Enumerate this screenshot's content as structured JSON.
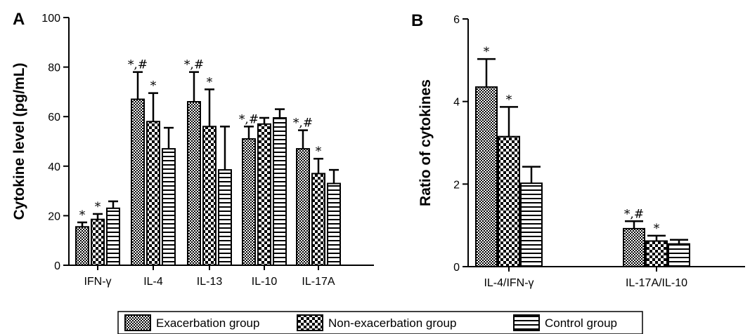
{
  "chart_data": [
    {
      "type": "bar",
      "panel_label": "A",
      "ylabel": "Cytokine level (pg/mL)",
      "ylim": [
        0,
        100
      ],
      "yticks": [
        "0",
        "20",
        "40",
        "60",
        "80",
        "100"
      ],
      "categories": [
        "IFN-γ",
        "IL-4",
        "IL-13",
        "IL-10",
        "IL-17A"
      ],
      "series": [
        {
          "values": [
            15.5,
            67,
            66,
            51,
            47
          ],
          "errors": [
            1.8,
            11,
            12,
            5,
            7.5
          ],
          "annotations": [
            "*",
            "*,#",
            "*,#",
            "*,#",
            "*,#"
          ]
        },
        {
          "values": [
            18.5,
            58,
            56,
            57,
            37
          ],
          "errors": [
            2.2,
            11.5,
            15,
            2.5,
            6
          ],
          "annotations": [
            "*",
            "*",
            "*",
            "",
            "*"
          ]
        },
        {
          "values": [
            23,
            47,
            38.5,
            59.5,
            33
          ],
          "errors": [
            2.8,
            8.5,
            17.5,
            3.5,
            5.5
          ],
          "annotations": [
            "",
            "",
            "",
            "",
            ""
          ]
        }
      ]
    },
    {
      "type": "bar",
      "panel_label": "B",
      "ylabel": "Ratio of cytokines",
      "ylim": [
        0,
        6
      ],
      "yticks": [
        "0",
        "2",
        "4",
        "6"
      ],
      "categories": [
        "IL-4/IFN-γ",
        "IL-17A/IL-10"
      ],
      "series": [
        {
          "values": [
            4.35,
            0.92
          ],
          "errors": [
            0.68,
            0.18
          ],
          "annotations": [
            "*",
            "*,#"
          ]
        },
        {
          "values": [
            3.15,
            0.62
          ],
          "errors": [
            0.72,
            0.13
          ],
          "annotations": [
            "*",
            "*"
          ]
        },
        {
          "values": [
            2.02,
            0.55
          ],
          "errors": [
            0.4,
            0.1
          ],
          "annotations": [
            "",
            ""
          ]
        }
      ]
    }
  ],
  "legend": {
    "items": [
      "Exacerbation group",
      "Non-exacerbation group",
      "Control group"
    ],
    "patterns": [
      "fine-checker",
      "coarse-checker",
      "horizontal-stripes"
    ]
  }
}
